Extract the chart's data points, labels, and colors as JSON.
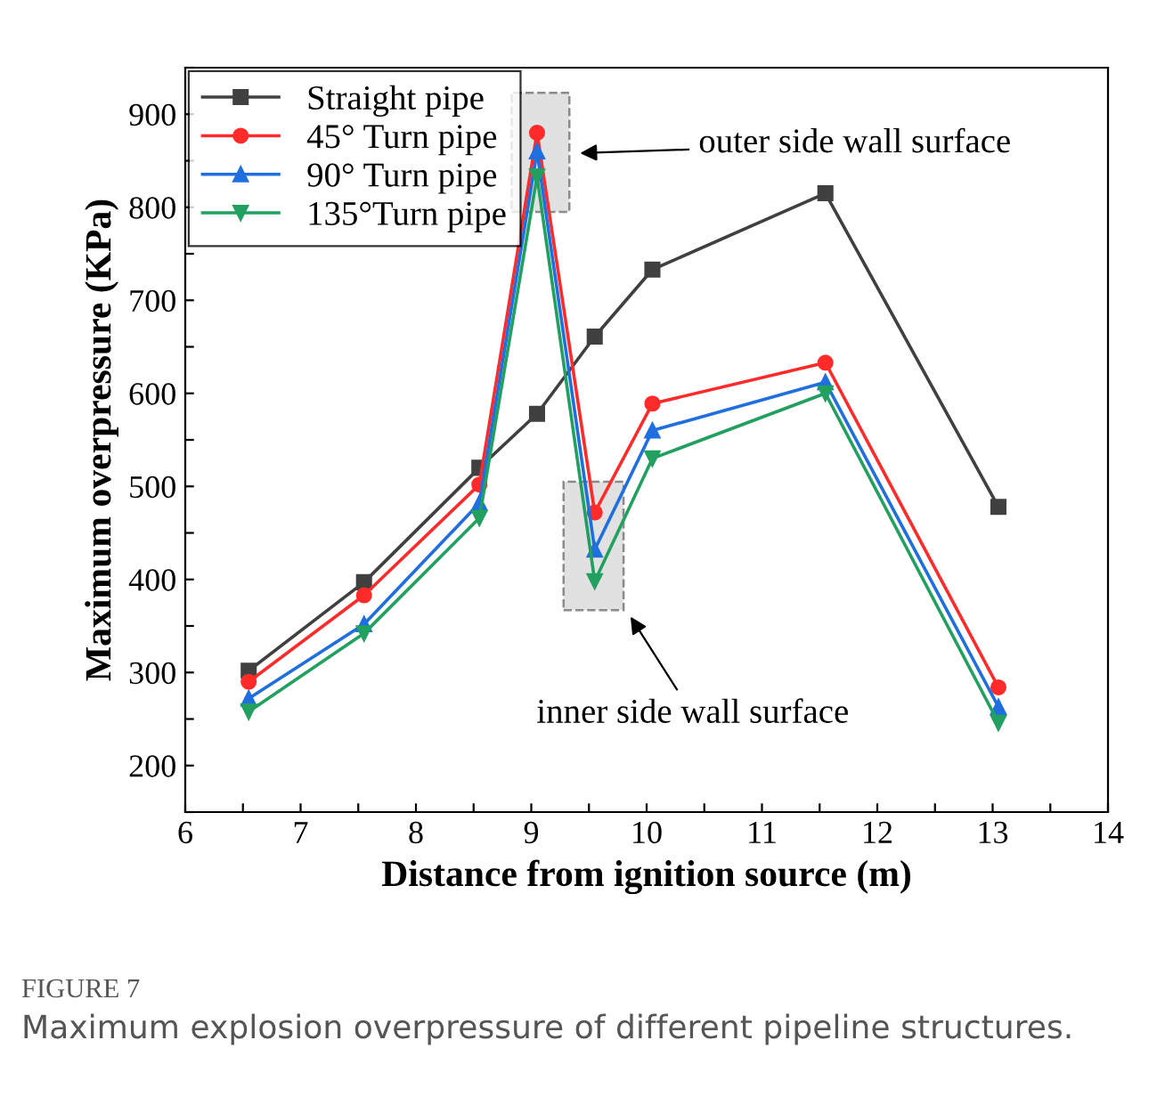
{
  "chart_data": {
    "type": "line",
    "xlabel": "Distance from ignition source (m)",
    "ylabel": "Maximum overpressure (KPa)",
    "x": [
      6.55,
      7.55,
      8.55,
      9.05,
      9.55,
      10.05,
      11.55,
      13.05
    ],
    "series": [
      {
        "name": "Straight pipe",
        "color": "#404040",
        "marker": "square",
        "values": [
          302,
          397,
          520,
          578,
          661,
          733,
          815,
          478
        ]
      },
      {
        "name": "45° Turn pipe",
        "color": "#ff2a2a",
        "marker": "circle",
        "values": [
          290,
          383,
          502,
          880,
          472,
          589,
          633,
          284
        ]
      },
      {
        "name": "90° Turn pipe",
        "color": "#1f6fe0",
        "marker": "triangle",
        "values": [
          272,
          352,
          482,
          860,
          432,
          560,
          612,
          263
        ]
      },
      {
        "name": "135°Turn pipe",
        "color": "#22a060",
        "marker": "triangle_down",
        "values": [
          258,
          342,
          466,
          833,
          398,
          530,
          600,
          246
        ]
      }
    ],
    "xlim": [
      6,
      14
    ],
    "xticks": [
      6,
      {
        "value": 6.5,
        "label": null
      },
      7,
      {
        "value": 7.5,
        "label": null
      },
      8,
      {
        "value": 8.5,
        "label": null
      },
      9,
      {
        "value": 9.5,
        "label": null
      },
      10,
      {
        "value": 10.5,
        "label": null
      },
      11,
      {
        "value": 11.5,
        "label": null
      },
      12,
      {
        "value": 12.5,
        "label": null
      },
      13,
      {
        "value": 13.5,
        "label": null
      },
      14
    ],
    "ylim": [
      150,
      950
    ],
    "yticks": [
      {
        "value": 150,
        "label": null
      },
      200,
      {
        "value": 250,
        "label": null
      },
      300,
      {
        "value": 350,
        "label": null
      },
      400,
      {
        "value": 450,
        "label": null
      },
      500,
      {
        "value": 550,
        "label": null
      },
      600,
      {
        "value": 650,
        "label": null
      },
      700,
      {
        "value": 750,
        "label": null
      },
      800,
      {
        "value": 850,
        "label": null
      },
      900,
      {
        "value": 950,
        "label": null
      }
    ],
    "grid": false,
    "legend": "top left",
    "line_style": "solid",
    "annotations": [
      "outer side wall surface",
      "inner side wall surface",
      "FIGURE 7",
      "Maximum explosion overpressure of different pipeline structures."
    ]
  }
}
